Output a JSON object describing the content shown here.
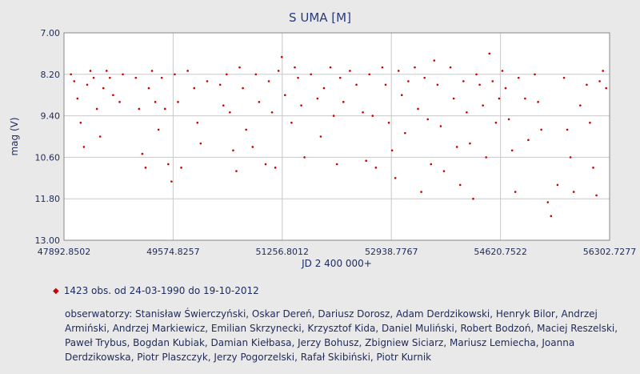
{
  "chart_data": {
    "type": "scatter",
    "title": "S UMA [M]",
    "xlabel": "JD 2 400 000+",
    "ylabel": "mag (V)",
    "xlim": [
      47892.8502,
      56302.7277
    ],
    "ylim": [
      13.0,
      7.0
    ],
    "y_inverted": true,
    "x_ticks": [
      "47892.8502",
      "49574.8257",
      "51256.8012",
      "52938.7767",
      "54620.7522",
      "56302.7277"
    ],
    "y_ticks": [
      "7.00",
      "8.20",
      "9.40",
      "10.60",
      "11.80",
      "13.00"
    ],
    "grid": true,
    "marker_color": "#cc0000",
    "observation_count": 1423,
    "date_range": [
      "24-03-1990",
      "19-10-2012"
    ],
    "series": [
      {
        "name": "",
        "points": [
          [
            48000,
            8.2
          ],
          [
            48050,
            8.4
          ],
          [
            48100,
            8.9
          ],
          [
            48150,
            9.6
          ],
          [
            48200,
            10.3
          ],
          [
            48250,
            8.5
          ],
          [
            48300,
            8.1
          ],
          [
            48350,
            8.3
          ],
          [
            48400,
            9.2
          ],
          [
            48450,
            10.0
          ],
          [
            48500,
            8.6
          ],
          [
            48550,
            8.1
          ],
          [
            48600,
            8.3
          ],
          [
            48650,
            8.8
          ],
          [
            48750,
            9.0
          ],
          [
            48800,
            8.2
          ],
          [
            49000,
            8.3
          ],
          [
            49050,
            9.2
          ],
          [
            49100,
            10.5
          ],
          [
            49150,
            10.9
          ],
          [
            49200,
            8.6
          ],
          [
            49250,
            8.1
          ],
          [
            49300,
            9.0
          ],
          [
            49350,
            9.8
          ],
          [
            49400,
            8.3
          ],
          [
            49450,
            9.2
          ],
          [
            49500,
            10.8
          ],
          [
            49550,
            11.3
          ],
          [
            49600,
            8.2
          ],
          [
            49650,
            9.0
          ],
          [
            49700,
            10.9
          ],
          [
            49800,
            8.1
          ],
          [
            49900,
            8.6
          ],
          [
            49950,
            9.6
          ],
          [
            50000,
            10.2
          ],
          [
            50100,
            8.4
          ],
          [
            50300,
            8.5
          ],
          [
            50350,
            9.1
          ],
          [
            50400,
            8.2
          ],
          [
            50450,
            9.3
          ],
          [
            50500,
            10.4
          ],
          [
            50550,
            11.0
          ],
          [
            50600,
            8.0
          ],
          [
            50650,
            8.6
          ],
          [
            50700,
            9.8
          ],
          [
            50800,
            10.3
          ],
          [
            50850,
            8.2
          ],
          [
            50900,
            9.0
          ],
          [
            51000,
            10.8
          ],
          [
            51050,
            8.4
          ],
          [
            51100,
            9.3
          ],
          [
            51150,
            10.9
          ],
          [
            51200,
            8.1
          ],
          [
            51250,
            7.7
          ],
          [
            51300,
            8.8
          ],
          [
            51400,
            9.6
          ],
          [
            51450,
            8.0
          ],
          [
            51500,
            8.3
          ],
          [
            51550,
            9.1
          ],
          [
            51600,
            10.6
          ],
          [
            51700,
            8.2
          ],
          [
            51800,
            8.9
          ],
          [
            51850,
            10.0
          ],
          [
            51900,
            8.6
          ],
          [
            52000,
            8.0
          ],
          [
            52050,
            9.4
          ],
          [
            52100,
            10.8
          ],
          [
            52150,
            8.3
          ],
          [
            52200,
            9.0
          ],
          [
            52300,
            8.1
          ],
          [
            52400,
            8.5
          ],
          [
            52500,
            9.3
          ],
          [
            52550,
            10.7
          ],
          [
            52600,
            8.2
          ],
          [
            52650,
            9.4
          ],
          [
            52700,
            10.9
          ],
          [
            52800,
            8.0
          ],
          [
            52850,
            8.5
          ],
          [
            52900,
            9.6
          ],
          [
            52950,
            10.4
          ],
          [
            53000,
            11.2
          ],
          [
            53050,
            8.1
          ],
          [
            53100,
            8.8
          ],
          [
            53150,
            9.9
          ],
          [
            53200,
            8.4
          ],
          [
            53300,
            8.0
          ],
          [
            53350,
            9.2
          ],
          [
            53400,
            11.6
          ],
          [
            53450,
            8.3
          ],
          [
            53500,
            9.5
          ],
          [
            53550,
            10.8
          ],
          [
            53600,
            7.8
          ],
          [
            53650,
            8.5
          ],
          [
            53700,
            9.7
          ],
          [
            53750,
            11.0
          ],
          [
            53850,
            8.0
          ],
          [
            53900,
            8.9
          ],
          [
            53950,
            10.3
          ],
          [
            54000,
            11.4
          ],
          [
            54050,
            8.4
          ],
          [
            54100,
            9.3
          ],
          [
            54150,
            10.2
          ],
          [
            54200,
            11.8
          ],
          [
            54250,
            8.2
          ],
          [
            54300,
            8.5
          ],
          [
            54350,
            9.1
          ],
          [
            54400,
            10.6
          ],
          [
            54450,
            7.6
          ],
          [
            54500,
            8.4
          ],
          [
            54550,
            9.6
          ],
          [
            54600,
            8.9
          ],
          [
            54650,
            8.1
          ],
          [
            54700,
            8.6
          ],
          [
            54750,
            9.5
          ],
          [
            54800,
            10.4
          ],
          [
            54850,
            11.6
          ],
          [
            54900,
            8.3
          ],
          [
            55000,
            8.9
          ],
          [
            55050,
            10.1
          ],
          [
            55150,
            8.2
          ],
          [
            55200,
            9.0
          ],
          [
            55250,
            9.8
          ],
          [
            55350,
            11.9
          ],
          [
            55400,
            12.3
          ],
          [
            55500,
            11.4
          ],
          [
            55600,
            8.3
          ],
          [
            55650,
            9.8
          ],
          [
            55700,
            10.6
          ],
          [
            55750,
            11.6
          ],
          [
            55850,
            9.1
          ],
          [
            55950,
            8.5
          ],
          [
            56000,
            9.6
          ],
          [
            56050,
            10.9
          ],
          [
            56100,
            11.7
          ],
          [
            56150,
            8.4
          ],
          [
            56200,
            8.1
          ],
          [
            56250,
            8.6
          ]
        ]
      }
    ]
  },
  "legend": {
    "summary": "1423 obs. od 24-03-1990 do 19-10-2012"
  },
  "observers": {
    "text": "obserwatorzy: Stanisław Świerczyński, Oskar Dereń, Dariusz Dorosz, Adam Derdzikowski, Henryk Bilor, Andrzej Armiński, Andrzej Markiewicz, Emilian Skrzynecki, Krzysztof Kida, Daniel Muliński, Robert Bodzoń, Maciej Reszelski, Paweł Trybus, Bogdan Kubiak, Damian Kiełbasa, Jerzy Bohusz, Zbigniew Siciarz, Mariusz Lemiecha, Joanna Derdzikowska, Piotr Plaszczyk, Jerzy Pogorzelski, Rafał Skibiński, Piotr Kurnik"
  }
}
